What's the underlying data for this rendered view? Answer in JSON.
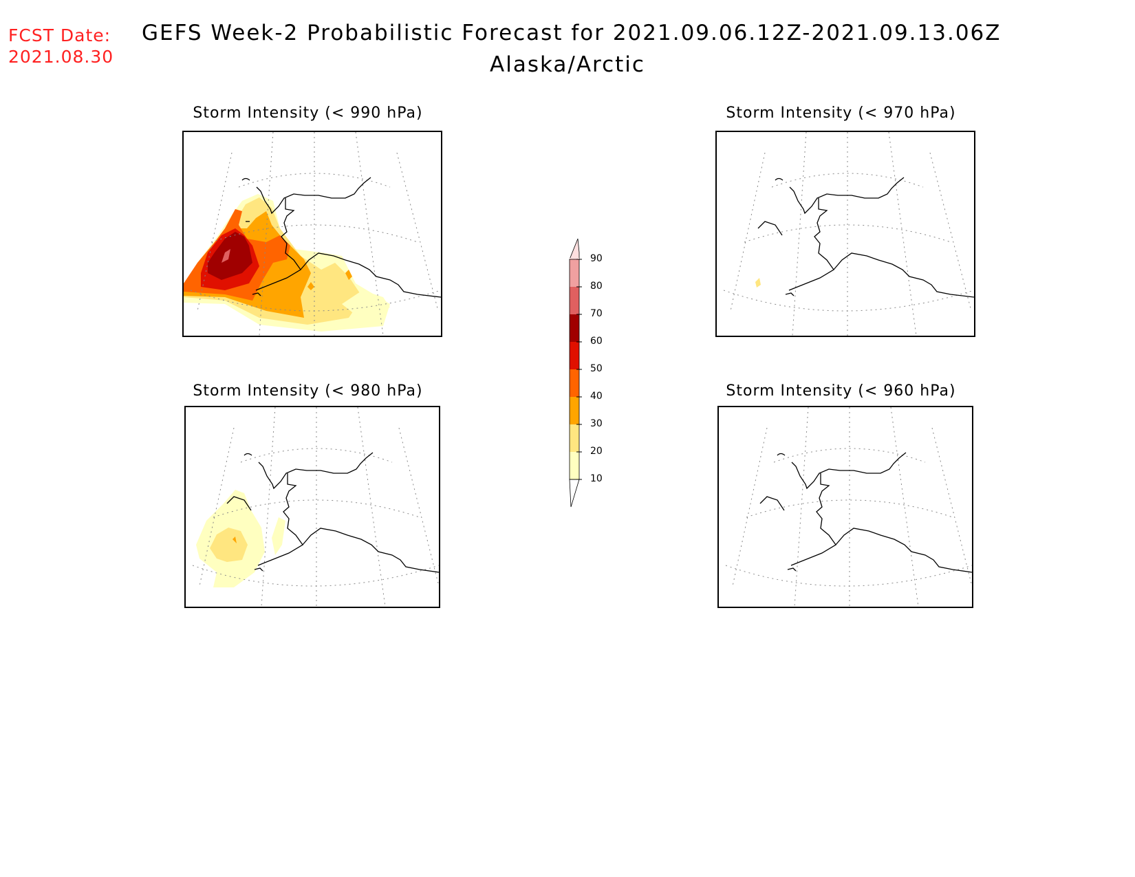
{
  "header": {
    "fcst_line1": "FCST Date:",
    "fcst_line2": "2021.08.30",
    "title": "GEFS Week-2 Probabilistic Forecast for 2021.09.06.12Z-2021.09.13.06Z",
    "region": "Alaska/Arctic"
  },
  "panels": [
    {
      "title": "Storm Intensity (< 990 hPa)"
    },
    {
      "title": "Storm Intensity (< 970 hPa)"
    },
    {
      "title": "Storm Intensity (< 980 hPa)"
    },
    {
      "title": "Storm Intensity (< 960 hPa)"
    }
  ],
  "colorbar": {
    "labels": [
      "90",
      "80",
      "70",
      "60",
      "50",
      "40",
      "30",
      "20",
      "10"
    ],
    "colors": {
      "10": "#ffffc0",
      "20": "#ffe680",
      "30": "#ffa500",
      "40": "#ff6400",
      "50": "#e01000",
      "60": "#a00000",
      "70": "#e06060",
      "80": "#f0a0a0",
      "90": "#ffe0e0"
    }
  }
}
